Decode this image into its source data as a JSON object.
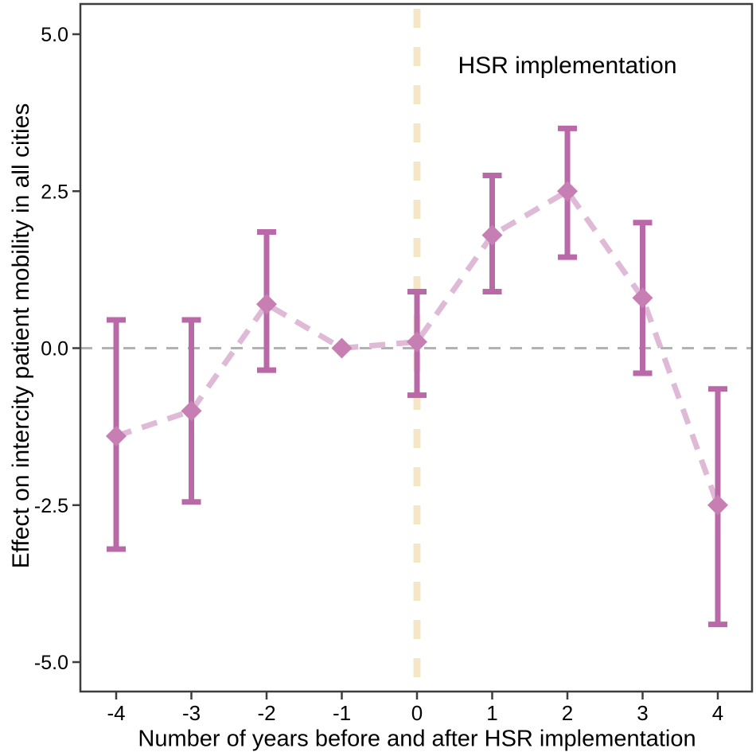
{
  "chart_data": {
    "type": "scatter",
    "subtype": "event-study-errorbar",
    "title": "",
    "xlabel": "Number of years before and after HSR implementation",
    "ylabel": "Effect on intercity patient mobility in all cities",
    "annotation": "HSR implementation",
    "x": [
      -4,
      -3,
      -2,
      -1,
      0,
      1,
      2,
      3,
      4
    ],
    "estimates": [
      -1.4,
      -1.0,
      0.7,
      0.0,
      0.1,
      1.8,
      2.5,
      0.8,
      -2.5
    ],
    "ci_low": [
      -3.2,
      -2.45,
      -0.35,
      null,
      -0.75,
      0.9,
      1.45,
      -0.4,
      -4.4
    ],
    "ci_high": [
      0.45,
      0.45,
      1.85,
      null,
      0.9,
      2.75,
      3.5,
      2.0,
      -0.65
    ],
    "reference_x": -1,
    "event_line_x": 0,
    "zero_line_y": 0,
    "xticks": [
      -4,
      -3,
      -2,
      -1,
      0,
      1,
      2,
      3,
      4
    ],
    "xtick_labels": [
      "-4",
      "-3",
      "-2",
      "-1",
      "0",
      "1",
      "2",
      "3",
      "4"
    ],
    "yticks": [
      5.0,
      2.5,
      0.0,
      -2.5,
      -5.0
    ],
    "ytick_labels": [
      "5.0",
      "2.5",
      "0.0",
      "-2.5",
      "-5.0"
    ],
    "xlim": [
      -4.47,
      4.47
    ],
    "ylim": [
      -5.48,
      5.48
    ],
    "grid": "off",
    "legend": "none",
    "marker_shape": "diamond",
    "line_style": "dashed"
  },
  "style": {
    "background": "#ffffff",
    "marker_color": "#c67eb3",
    "errorbar_color": "#b969a8",
    "line_color": "#debad7",
    "zero_line_color": "#b2b2b2",
    "event_line_color": "#f5e7c5",
    "axis_color": "#3d3d3d",
    "text_color": "#000000"
  }
}
